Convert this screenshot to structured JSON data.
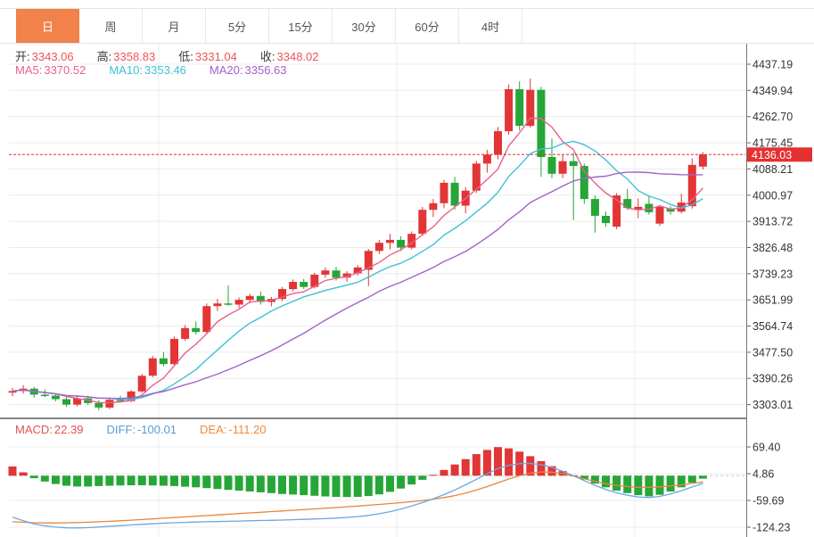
{
  "tabs": {
    "items": [
      {
        "label": "日",
        "active": true
      },
      {
        "label": "周",
        "active": false
      },
      {
        "label": "月",
        "active": false
      },
      {
        "label": "5分",
        "active": false
      },
      {
        "label": "15分",
        "active": false
      },
      {
        "label": "30分",
        "active": false
      },
      {
        "label": "60分",
        "active": false
      },
      {
        "label": "4时",
        "active": false
      }
    ]
  },
  "main_info": {
    "ohlc": [
      {
        "label": "开:",
        "value": "3343.06",
        "color": "#ef5454"
      },
      {
        "label": "高:",
        "value": "3358.83",
        "color": "#ef5454"
      },
      {
        "label": "低:",
        "value": "3331.04",
        "color": "#ef5454"
      },
      {
        "label": "收:",
        "value": "3348.02",
        "color": "#ef5454"
      }
    ],
    "ma": [
      {
        "label": "MA5:",
        "value": "3370.52",
        "color": "#e8618f"
      },
      {
        "label": "MA10:",
        "value": "3353.46",
        "color": "#3fc0d6"
      },
      {
        "label": "MA20:",
        "value": "3356.63",
        "color": "#a263c8"
      }
    ]
  },
  "macd_info": [
    {
      "label": "MACD:",
      "value": "22.39",
      "color": "#e05252"
    },
    {
      "label": "DIFF:",
      "value": "-100.01",
      "color": "#5b9bd5"
    },
    {
      "label": "DEA:",
      "value": "-111.20",
      "color": "#ed8a3d"
    }
  ],
  "current_price": "4136.03",
  "colors": {
    "up": "#e23535",
    "down": "#26a637",
    "ma5": "#e8618f",
    "ma10": "#3fc0d6",
    "ma20": "#a263c8",
    "diff_line": "#6aa7e2",
    "dea_line": "#e8863c",
    "price_line": "#e03030",
    "badge_bg": "#e53030",
    "badge_text": "#ffffff",
    "grid": "#ececec",
    "axis": "#666666",
    "tick_text": "#333333",
    "active_tab": "#f0824a"
  },
  "chart_data": {
    "type": "candlestick",
    "panels": [
      {
        "name": "price",
        "y_ticks": [
          4437.19,
          4349.94,
          4262.7,
          4175.45,
          4088.21,
          4000.97,
          3913.72,
          3826.48,
          3739.23,
          3651.99,
          3564.74,
          3477.5,
          3390.26,
          3303.01
        ],
        "current_price": 4136.03,
        "overlays": [
          {
            "name": "MA5",
            "period": 5
          },
          {
            "name": "MA10",
            "period": 10
          },
          {
            "name": "MA20",
            "period": 20
          }
        ],
        "candles": [
          [
            3343.06,
            3358.83,
            3331.04,
            3348.02
          ],
          [
            3348,
            3368,
            3340,
            3356
          ],
          [
            3356,
            3362,
            3326,
            3336
          ],
          [
            3336,
            3354,
            3328,
            3333
          ],
          [
            3333,
            3340,
            3314,
            3321
          ],
          [
            3321,
            3330,
            3295,
            3303
          ],
          [
            3303,
            3330,
            3297,
            3324
          ],
          [
            3324,
            3333,
            3301,
            3308
          ],
          [
            3308,
            3318,
            3284,
            3293
          ],
          [
            3293,
            3325,
            3288,
            3319
          ],
          [
            3319,
            3333,
            3309,
            3315
          ],
          [
            3315,
            3352,
            3311,
            3347
          ],
          [
            3347,
            3405,
            3342,
            3399
          ],
          [
            3399,
            3465,
            3394,
            3457
          ],
          [
            3457,
            3478,
            3430,
            3438
          ],
          [
            3438,
            3530,
            3434,
            3522
          ],
          [
            3522,
            3568,
            3515,
            3558
          ],
          [
            3558,
            3580,
            3536,
            3545
          ],
          [
            3545,
            3640,
            3540,
            3631
          ],
          [
            3631,
            3655,
            3615,
            3640
          ],
          [
            3640,
            3700,
            3632,
            3636
          ],
          [
            3636,
            3660,
            3625,
            3652
          ],
          [
            3652,
            3672,
            3640,
            3665
          ],
          [
            3665,
            3680,
            3636,
            3645
          ],
          [
            3645,
            3662,
            3630,
            3655
          ],
          [
            3655,
            3695,
            3648,
            3688
          ],
          [
            3688,
            3720,
            3680,
            3712
          ],
          [
            3712,
            3722,
            3688,
            3695
          ],
          [
            3695,
            3742,
            3690,
            3736
          ],
          [
            3736,
            3760,
            3726,
            3750
          ],
          [
            3750,
            3762,
            3716,
            3726
          ],
          [
            3726,
            3748,
            3712,
            3740
          ],
          [
            3740,
            3768,
            3732,
            3760
          ],
          [
            3752,
            3822,
            3698,
            3815
          ],
          [
            3815,
            3852,
            3805,
            3842
          ],
          [
            3842,
            3872,
            3820,
            3852
          ],
          [
            3852,
            3864,
            3814,
            3826
          ],
          [
            3826,
            3880,
            3820,
            3872
          ],
          [
            3872,
            3962,
            3866,
            3952
          ],
          [
            3952,
            3988,
            3928,
            3974
          ],
          [
            3974,
            4052,
            3958,
            4042
          ],
          [
            4042,
            4062,
            3952,
            3966
          ],
          [
            3966,
            4028,
            3940,
            4016
          ],
          [
            4016,
            4115,
            4008,
            4106
          ],
          [
            4106,
            4152,
            4076,
            4136
          ],
          [
            4136,
            4228,
            4120,
            4214
          ],
          [
            4214,
            4370,
            4202,
            4354
          ],
          [
            4354,
            4380,
            4216,
            4232
          ],
          [
            4232,
            4390,
            4226,
            4352
          ],
          [
            4352,
            4362,
            4062,
            4128
          ],
          [
            4128,
            4190,
            4058,
            4072
          ],
          [
            4072,
            4136,
            4058,
            4114
          ],
          [
            4114,
            4142,
            3918,
            4098
          ],
          [
            4098,
            4106,
            3972,
            3988
          ],
          [
            3988,
            4000,
            3876,
            3932
          ],
          [
            3932,
            3946,
            3896,
            3908
          ],
          [
            3896,
            4008,
            3888,
            4000
          ],
          [
            3988,
            4022,
            3952,
            3958
          ],
          [
            3952,
            3990,
            3924,
            3962
          ],
          [
            3972,
            3996,
            3936,
            3944
          ],
          [
            3906,
            3968,
            3898,
            3962
          ],
          [
            3956,
            3964,
            3936,
            3946
          ],
          [
            3946,
            4006,
            3940,
            3976
          ],
          [
            3964,
            4124,
            3956,
            4102
          ],
          [
            4096,
            4144,
            4086,
            4136.03
          ]
        ]
      },
      {
        "name": "macd",
        "y_ticks": [
          69.4,
          4.86,
          -59.69,
          -124.23
        ],
        "series": [
          {
            "name": "MACD",
            "values": [
              22.39,
              8,
              -6,
              -14,
              -20,
              -24,
              -26,
              -26,
              -25,
              -24,
              -23.5,
              -23,
              -23,
              -23.5,
              -24,
              -25,
              -26.5,
              -28,
              -30,
              -32,
              -34,
              -36,
              -38,
              -40,
              -42,
              -44,
              -45.5,
              -47,
              -48.5,
              -50,
              -51,
              -51.5,
              -51,
              -49,
              -45,
              -39,
              -31,
              -21,
              -10,
              2,
              14,
              27,
              40,
              52,
              62,
              69,
              66,
              58,
              47,
              35,
              23,
              11,
              1,
              -9,
              -19,
              -28,
              -36,
              -42,
              -47,
              -50,
              -46,
              -38,
              -28,
              -17,
              -7
            ]
          },
          {
            "name": "DIFF",
            "values": [
              -100.01,
              -108.5,
              -116.5,
              -121,
              -124,
              -125.7,
              -126,
              -125.2,
              -123.7,
              -122,
              -120.5,
              -118.8,
              -117.3,
              -116,
              -114.6,
              -113.5,
              -112.7,
              -111.8,
              -111.2,
              -110.6,
              -110,
              -109.4,
              -108.8,
              -108.2,
              -107.6,
              -107,
              -106.2,
              -105.3,
              -104.5,
              -103.5,
              -102.3,
              -100.8,
              -98.7,
              -95.8,
              -91.8,
              -86.7,
              -80.5,
              -73.1,
              -64.9,
              -55.7,
              -45.8,
              -34.5,
              -22,
              -8.8,
              4.6,
              17.3,
              25,
              29,
              29.5,
              26.5,
              20,
              10.5,
              -0.3,
              -12,
              -23.3,
              -33.2,
              -41.4,
              -47.3,
              -51.3,
              -53,
              -50,
              -44,
              -36.2,
              -27.3,
              -18.5
            ]
          },
          {
            "name": "DEA",
            "values": [
              -111.2,
              -112.5,
              -113.5,
              -114,
              -114,
              -113.7,
              -113,
              -112.2,
              -111.2,
              -110,
              -108.7,
              -107.3,
              -105.8,
              -104.2,
              -102.6,
              -101,
              -99.4,
              -97.8,
              -96.2,
              -94.6,
              -93,
              -91.4,
              -89.8,
              -88.2,
              -86.6,
              -85,
              -83.4,
              -81.8,
              -80.2,
              -78.5,
              -76.8,
              -75,
              -73.2,
              -71.3,
              -69.3,
              -67.2,
              -65,
              -62.6,
              -59.9,
              -56.7,
              -52.8,
              -48,
              -42,
              -34.8,
              -26.4,
              -17.2,
              -8,
              0,
              6,
              9,
              8.5,
              5,
              -0.8,
              -7.5,
              -13.8,
              -19.2,
              -23.4,
              -26.3,
              -27.8,
              -28,
              -27,
              -25,
              -22.2,
              -18.8,
              -15
            ]
          }
        ]
      }
    ]
  }
}
